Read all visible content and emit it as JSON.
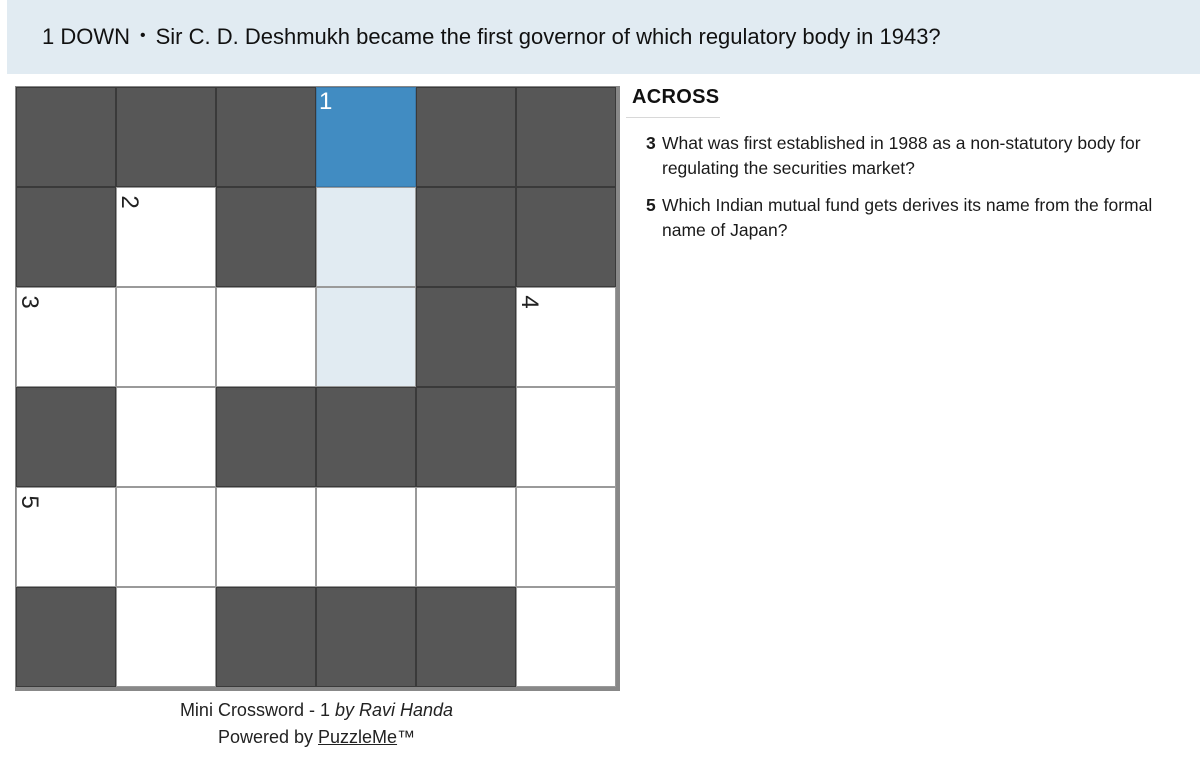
{
  "header": {
    "clue_ref": "1 DOWN",
    "separator": "•",
    "clue_text": "Sir C. D. Deshmukh became the first governor of which regulatory body in 1943?"
  },
  "grid": {
    "cells": [
      [
        "block",
        "block",
        "block",
        {
          "t": "active",
          "n": "1"
        },
        "block",
        "block"
      ],
      [
        "block",
        {
          "t": "open",
          "n": "2",
          "rot": true
        },
        "block",
        {
          "t": "word"
        },
        "block",
        "block"
      ],
      [
        {
          "t": "open",
          "n": "3",
          "rot": true
        },
        {
          "t": "open"
        },
        {
          "t": "open"
        },
        {
          "t": "word"
        },
        "block",
        {
          "t": "open",
          "n": "4",
          "rot": true
        }
      ],
      [
        "block",
        {
          "t": "open"
        },
        "block",
        "block",
        "block",
        {
          "t": "open"
        }
      ],
      [
        {
          "t": "open",
          "n": "5",
          "rot": true
        },
        {
          "t": "open"
        },
        {
          "t": "open"
        },
        {
          "t": "open"
        },
        {
          "t": "open"
        },
        {
          "t": "open"
        }
      ],
      [
        "block",
        {
          "t": "open"
        },
        "block",
        "block",
        "block",
        {
          "t": "open"
        }
      ]
    ]
  },
  "credits": {
    "title": "Mini Crossword - 1",
    "byline": "by Ravi Handa",
    "powered_prefix": "Powered by",
    "powered_link": "PuzzleMe",
    "trademark": "™"
  },
  "clues": {
    "heading": "ACROSS",
    "items": [
      {
        "num": "3",
        "text": "What was first established in 1988 as a non-statutory body for regulating the securities market?"
      },
      {
        "num": "5",
        "text": "Which Indian mutual fund gets derives its name from the formal name of Japan?"
      }
    ]
  },
  "colors": {
    "clue_bar_bg": "#e1ebf2",
    "active_cell": "#418cc2",
    "word_highlight": "#e1ebf2",
    "block_cell": "#575757"
  }
}
